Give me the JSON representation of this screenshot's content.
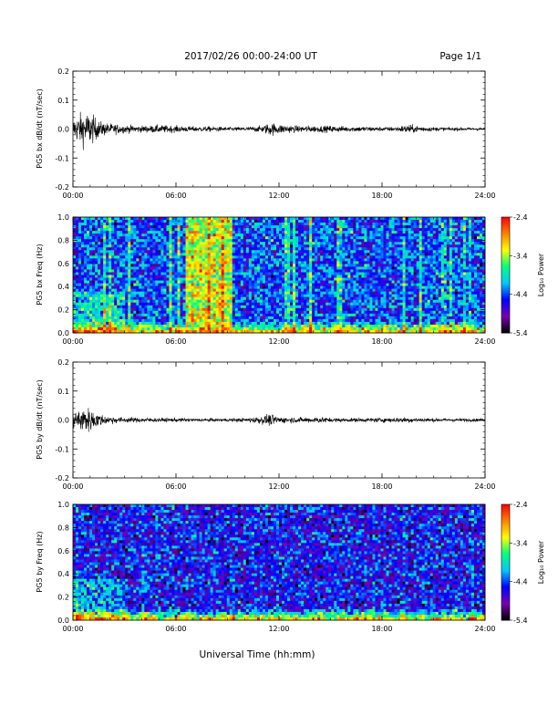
{
  "header": {
    "title": "2017/02/26  00:00-24:00 UT",
    "page": "Page 1/1"
  },
  "x_axis": {
    "title": "Universal Time (hh:mm)",
    "tick_labels": [
      "00:00",
      "06:00",
      "12:00",
      "18:00",
      "24:00"
    ]
  },
  "colorbar": {
    "label": "Log₁₀ Power",
    "tick_labels": [
      "-2.4",
      "-3.4",
      "-4.4",
      "-5.4"
    ],
    "range": [
      -5.4,
      -2.4
    ],
    "colors": [
      "#000000",
      "#7a00b0",
      "#0000ff",
      "#00c8ff",
      "#00ff80",
      "#ffff00",
      "#ff8000",
      "#ff0000"
    ]
  },
  "chart_data": [
    {
      "type": "line",
      "series_label": "PG5 bx dB/dt (nT/sec)",
      "ylabel": "PG5 bx dB/dt (nT/sec)",
      "x_range_hours": [
        0,
        24
      ],
      "ylim": [
        -0.2,
        0.2
      ],
      "yticks": [
        "0.2",
        "0.1",
        "0.0",
        "-0.1",
        "-0.2"
      ],
      "envelope": {
        "hours": [
          0,
          0.5,
          1,
          1.5,
          2,
          3,
          4,
          5,
          6,
          7,
          8,
          9,
          10,
          11,
          11.5,
          12,
          13,
          14,
          15,
          16,
          17,
          18,
          19,
          19.5,
          20,
          21,
          22,
          23,
          24
        ],
        "amplitude": [
          0.03,
          0.05,
          0.05,
          0.025,
          0.018,
          0.012,
          0.01,
          0.012,
          0.01,
          0.008,
          0.008,
          0.006,
          0.006,
          0.01,
          0.02,
          0.015,
          0.01,
          0.01,
          0.01,
          0.008,
          0.008,
          0.006,
          0.008,
          0.014,
          0.01,
          0.006,
          0.005,
          0.005,
          0.004
        ]
      }
    },
    {
      "type": "heatmap",
      "series_label": "PG5 bx Freq (Hz)",
      "ylabel": "PG5 bx Freq (Hz)",
      "x_range_hours": [
        0,
        24
      ],
      "ylim": [
        0,
        1.0
      ],
      "yticks": [
        "1.0",
        "0.8",
        "0.6",
        "0.4",
        "0.2",
        "0.0"
      ],
      "value_range": [
        -5.4,
        -2.4
      ],
      "enhanced_band_hours": [
        6.5,
        9.2
      ],
      "enhanced_level": -3.3,
      "background_level": -4.4,
      "low_freq_level": -2.9
    },
    {
      "type": "line",
      "series_label": "PG5 by dB/dt (nT/sec)",
      "ylabel": "PG5 by dB/dt (nT/sec)",
      "x_range_hours": [
        0,
        24
      ],
      "ylim": [
        -0.2,
        0.2
      ],
      "yticks": [
        "0.2",
        "0.1",
        "0.0",
        "-0.1",
        "-0.2"
      ],
      "envelope": {
        "hours": [
          0,
          0.5,
          1,
          1.5,
          2,
          3,
          4,
          5,
          6,
          7,
          8,
          9,
          10,
          11,
          11.5,
          12,
          13,
          14,
          14.5,
          15,
          16,
          17,
          18,
          19,
          20,
          21,
          22,
          23,
          24
        ],
        "amplitude": [
          0.025,
          0.04,
          0.035,
          0.02,
          0.012,
          0.008,
          0.007,
          0.006,
          0.006,
          0.005,
          0.005,
          0.005,
          0.006,
          0.012,
          0.018,
          0.01,
          0.008,
          0.008,
          0.01,
          0.006,
          0.006,
          0.006,
          0.007,
          0.008,
          0.007,
          0.005,
          0.005,
          0.005,
          0.004
        ]
      }
    },
    {
      "type": "heatmap",
      "series_label": "PG5 by Freq (Hz)",
      "ylabel": "PG5 by Freq (Hz)",
      "x_range_hours": [
        0,
        24
      ],
      "ylim": [
        0,
        1.0
      ],
      "yticks": [
        "1.0",
        "0.8",
        "0.6",
        "0.4",
        "0.2",
        "0.0"
      ],
      "value_range": [
        -5.4,
        -2.4
      ],
      "background_level": -4.6,
      "low_freq_level": -3.0
    }
  ]
}
